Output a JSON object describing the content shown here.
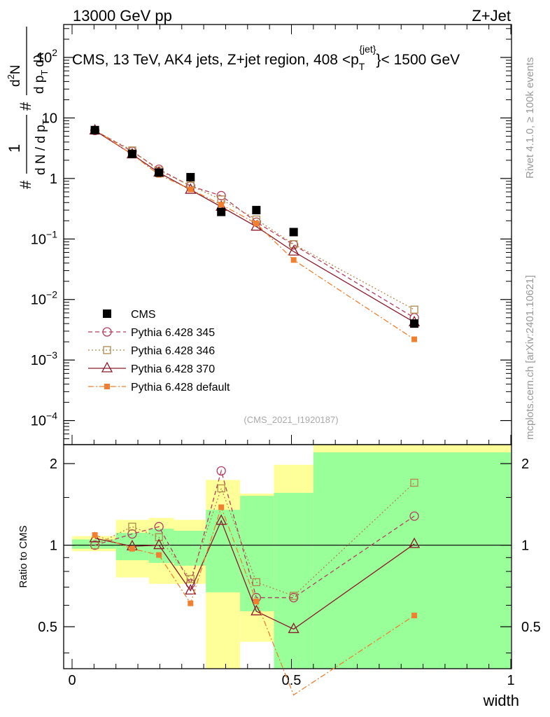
{
  "header": {
    "left": "13000 GeV pp",
    "right": "Z+Jet"
  },
  "plot_title": "CMS, 13 TeV, AK4 jets, Z+jet region, 408 <p",
  "plot_title_sup": "{jet}",
  "plot_title_sub": "T",
  "plot_title_end": "}< 1500 GeV",
  "ylabel_main_parts": {
    "a": "#",
    "b": "1",
    "c": "d N / d p",
    "c_sub": "T",
    "d": "#",
    "e": "d",
    "e_sup": "2",
    "f": "N",
    "g": "d p",
    "g_sub": "T",
    "h": "dλ"
  },
  "analysis_id": "(CMS_2021_I1920187)",
  "side_top": "Rivet 4.1.0, ≥ 100k events",
  "side_bottom": "mcplots.cern.ch [arXiv:2401.10621]",
  "colors": {
    "cms": "#000000",
    "s345": "#b33d5c",
    "s346": "#b0894a",
    "s370": "#8b1a2a",
    "sdefault": "#f08030",
    "band_yellow": "#ffff99",
    "band_green": "#99ff99"
  },
  "chart_data": {
    "type": "scatter",
    "xlabel": "width",
    "xlim": [
      0,
      1
    ],
    "x_ticks": [
      0,
      0.5,
      1
    ],
    "x_tick_labels": [
      "0",
      "0.5",
      "1"
    ],
    "main": {
      "scale": "log",
      "ylim": [
        4e-05,
        350
      ],
      "y_ticks": [
        0.0001,
        0.001,
        0.01,
        0.1,
        1,
        10,
        100
      ],
      "y_tick_labels": [
        {
          "base": "10",
          "exp": "−4"
        },
        {
          "base": "10",
          "exp": "−3"
        },
        {
          "base": "10",
          "exp": "−2"
        },
        {
          "base": "10",
          "exp": "−1"
        },
        {
          "base": "1",
          "exp": ""
        },
        {
          "base": "10",
          "exp": ""
        },
        {
          "base": "10",
          "exp": "2"
        }
      ]
    },
    "ratio": {
      "ylabel": "Ratio to CMS",
      "ylim": [
        0.35,
        2.35
      ],
      "y_ticks": [
        0.5,
        1,
        2
      ],
      "y_tick_labels": [
        "0.5",
        "1",
        "2"
      ],
      "bands": [
        {
          "x0": 0.0,
          "x1": 0.1,
          "y_lo": 0.95,
          "y_hi": 1.08,
          "g_lo": 0.97,
          "g_hi": 1.05
        },
        {
          "x0": 0.1,
          "x1": 0.175,
          "y_lo": 0.76,
          "y_hi": 1.24,
          "g_lo": 0.88,
          "g_hi": 1.11
        },
        {
          "x0": 0.175,
          "x1": 0.232,
          "y_lo": 0.72,
          "y_hi": 1.26,
          "g_lo": 0.86,
          "g_hi": 1.15
        },
        {
          "x0": 0.232,
          "x1": 0.305,
          "y_lo": 0.72,
          "y_hi": 1.24,
          "g_lo": 0.84,
          "g_hi": 1.13
        },
        {
          "x0": 0.305,
          "x1": 0.383,
          "y_lo": 0.3,
          "y_hi": 1.74,
          "g_lo": 0.67,
          "g_hi": 1.35
        },
        {
          "x0": 0.383,
          "x1": 0.46,
          "y_lo": 0.44,
          "y_hi": 1.55,
          "g_lo": 0.57,
          "g_hi": 1.52
        },
        {
          "x0": 0.46,
          "x1": 0.55,
          "y_lo": 0.3,
          "y_hi": 1.98,
          "g_lo": 0.3,
          "g_hi": 1.56
        },
        {
          "x0": 0.55,
          "x1": 1.0,
          "y_lo": 0.3,
          "y_hi": 2.4,
          "g_lo": 0.3,
          "g_hi": 2.2
        }
      ]
    },
    "legend_position": "bottom-left",
    "series": [
      {
        "key": "cms",
        "name": "CMS",
        "marker": "filled-square",
        "line": "none",
        "x": [
          0.052,
          0.137,
          0.198,
          0.27,
          0.34,
          0.42,
          0.505,
          0.78
        ],
        "y": [
          6.3,
          2.55,
          1.25,
          1.05,
          0.28,
          0.3,
          0.13,
          0.004
        ],
        "ratio": [
          1,
          1,
          1,
          1,
          1,
          1,
          1,
          1
        ]
      },
      {
        "key": "s345",
        "name": "Pythia 6.428 345",
        "marker": "open-circle",
        "line": "dashed",
        "x": [
          0.052,
          0.137,
          0.198,
          0.27,
          0.34,
          0.42,
          0.505,
          0.78
        ],
        "y": [
          6.2,
          2.8,
          1.42,
          0.75,
          0.52,
          0.19,
          0.08,
          0.005
        ],
        "ratio": [
          1.0,
          1.1,
          1.17,
          0.72,
          1.88,
          0.64,
          0.64,
          1.28
        ]
      },
      {
        "key": "s346",
        "name": "Pythia 6.428 346",
        "marker": "open-square",
        "line": "dotted",
        "x": [
          0.052,
          0.137,
          0.198,
          0.27,
          0.34,
          0.42,
          0.505,
          0.78
        ],
        "y": [
          6.2,
          2.9,
          1.35,
          0.76,
          0.45,
          0.21,
          0.082,
          0.0068
        ],
        "ratio": [
          1.0,
          1.17,
          1.07,
          0.75,
          1.62,
          0.73,
          0.65,
          1.7
        ]
      },
      {
        "key": "s370",
        "name": "Pythia 6.428 370",
        "marker": "open-triangle",
        "line": "solid",
        "x": [
          0.052,
          0.137,
          0.198,
          0.27,
          0.34,
          0.42,
          0.505,
          0.78
        ],
        "y": [
          6.2,
          2.5,
          1.25,
          0.65,
          0.34,
          0.16,
          0.062,
          0.0042
        ],
        "ratio": [
          1.06,
          0.99,
          1.0,
          0.68,
          1.23,
          0.57,
          0.49,
          1.01
        ]
      },
      {
        "key": "sdefault",
        "name": "Pythia 6.428 default",
        "marker": "filled-square-small",
        "line": "dashdot",
        "x": [
          0.052,
          0.137,
          0.198,
          0.27,
          0.34,
          0.42,
          0.505,
          0.78
        ],
        "y": [
          6.4,
          2.5,
          1.15,
          0.66,
          0.37,
          0.18,
          0.045,
          0.0022
        ],
        "ratio": [
          1.09,
          0.97,
          0.92,
          0.61,
          1.38,
          0.62,
          0.28,
          0.55
        ]
      }
    ]
  }
}
